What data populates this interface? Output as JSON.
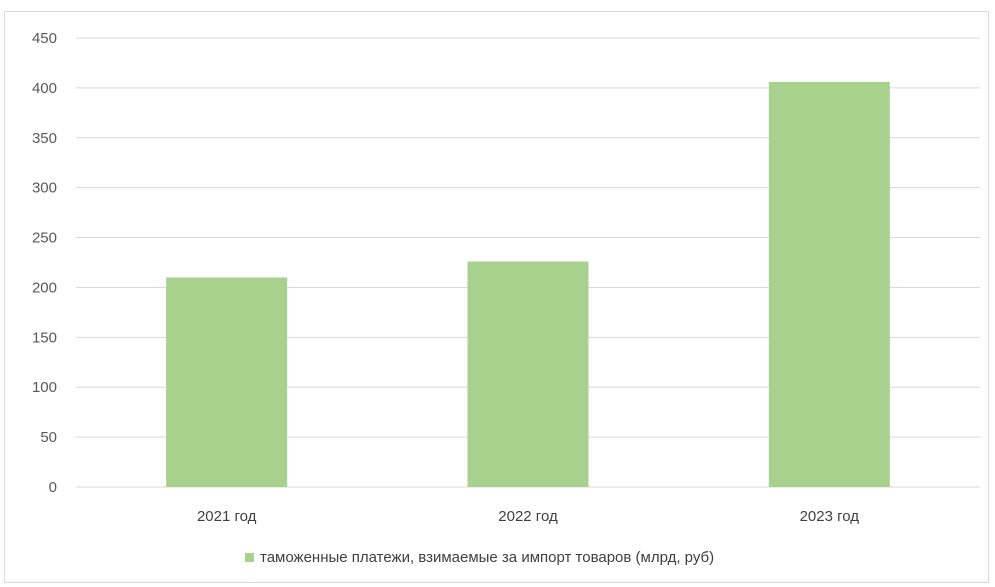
{
  "chart_data": {
    "type": "bar",
    "categories": [
      "2021 год",
      "2022 год",
      "2023 год"
    ],
    "series": [
      {
        "name": "таможенные платежи, взимаемые за импорт товаров (млрд, руб)",
        "values": [
          210,
          226,
          406
        ],
        "color": "#a9d18e"
      }
    ],
    "yticks": [
      0,
      50,
      100,
      150,
      200,
      250,
      300,
      350,
      400,
      450
    ],
    "ylim": [
      0,
      450
    ],
    "grid": true,
    "legend_position": "bottom",
    "gridline_color": "#d9d9d9",
    "axis_color": "#d9d9d9"
  }
}
